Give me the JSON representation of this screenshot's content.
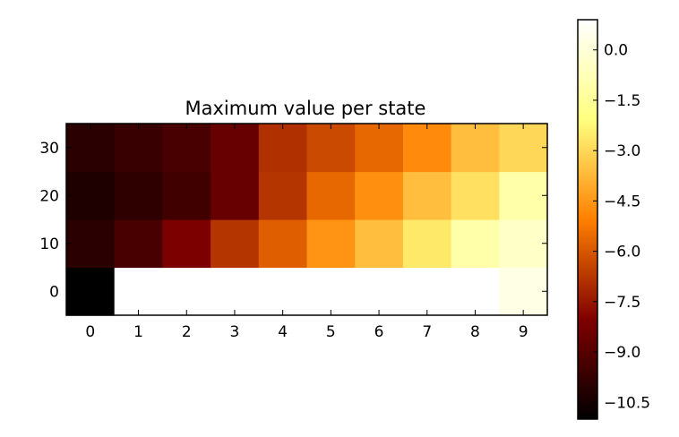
{
  "chart_data": {
    "type": "heatmap",
    "title": "Maximum value per state",
    "xlabel": "",
    "ylabel": "",
    "x_categories": [
      "0",
      "1",
      "2",
      "3",
      "4",
      "5",
      "6",
      "7",
      "8",
      "9"
    ],
    "y_categories": [
      "0",
      "10",
      "20",
      "30"
    ],
    "rows_bottom_to_top": [
      [
        -11.0,
        0.9,
        0.9,
        0.9,
        0.9,
        0.9,
        0.9,
        0.9,
        0.9,
        0.3
      ],
      [
        -10.0,
        -9.3,
        -8.1,
        -6.8,
        -5.8,
        -4.6,
        -3.6,
        -2.6,
        -1.1,
        -0.4
      ],
      [
        -10.3,
        -9.9,
        -9.5,
        -8.6,
        -6.8,
        -5.6,
        -4.7,
        -3.6,
        -2.8,
        -1.1
      ],
      [
        -10.0,
        -9.7,
        -9.3,
        -8.6,
        -6.9,
        -6.3,
        -5.6,
        -4.8,
        -3.6,
        -3.0
      ]
    ],
    "colorbar": {
      "colormap": "afmhot",
      "vmin": -11.0,
      "vmax": 0.9,
      "ticks": [
        0.0,
        -1.5,
        -3.0,
        -4.5,
        -6.0,
        -7.5,
        -9.0,
        -10.5
      ],
      "tick_labels": [
        "0.0",
        "−1.5",
        "−3.0",
        "−4.5",
        "−6.0",
        "−7.5",
        "−9.0",
        "−10.5"
      ]
    }
  }
}
